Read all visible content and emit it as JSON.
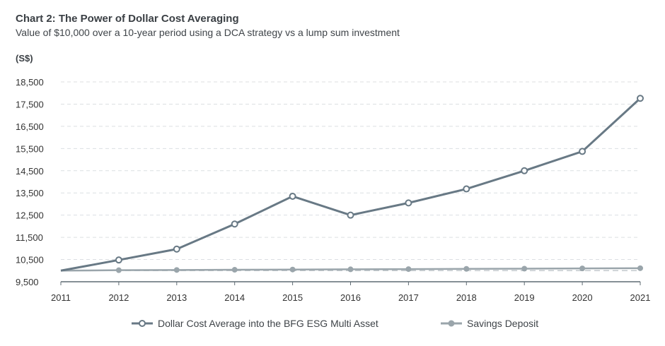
{
  "title": "Chart 2: The Power of Dollar Cost Averaging",
  "subtitle": "Value of $10,000 over a 10-year period using a DCA strategy vs a lump sum investment",
  "colors": {
    "dca": "#687985",
    "savings": "#9aa5ab",
    "lump": "#c3c9cd",
    "grid": "#dcdfe2",
    "axis": "#5f6b73"
  },
  "chart_data": {
    "type": "line",
    "title": "Chart 2: The Power of Dollar Cost Averaging",
    "subtitle": "Value of $10,000 over a 10-year period using a DCA strategy vs a lump sum investment",
    "ylabel": "(S$)",
    "xlabel": "",
    "x": [
      "2011",
      "2012",
      "2013",
      "2014",
      "2015",
      "2016",
      "2017",
      "2018",
      "2019",
      "2020",
      "2021"
    ],
    "ylim": [
      9500,
      18500
    ],
    "yticks": [
      "9,500",
      "10,500",
      "11,500",
      "12,500",
      "13,500",
      "14,500",
      "15,500",
      "16,500",
      "17,500",
      "18,500"
    ],
    "ytick_values": [
      9500,
      10500,
      11500,
      12500,
      13500,
      14500,
      15500,
      16500,
      17500,
      18500
    ],
    "grid": true,
    "legend_position": "bottom",
    "series": [
      {
        "name": "Dollar Cost Average into the BFG ESG Multi Asset",
        "values": [
          10000,
          10480,
          10970,
          12100,
          13350,
          12500,
          13050,
          13680,
          14500,
          15370,
          17760
        ]
      },
      {
        "name": "Savings Deposit",
        "values": [
          10000,
          10020,
          10030,
          10040,
          10050,
          10060,
          10070,
          10080,
          10090,
          10100,
          10110
        ]
      },
      {
        "values": [
          10000,
          10000,
          10000,
          10000,
          10000,
          10000,
          10000,
          10000,
          10000,
          10000,
          10000
        ]
      }
    ]
  }
}
